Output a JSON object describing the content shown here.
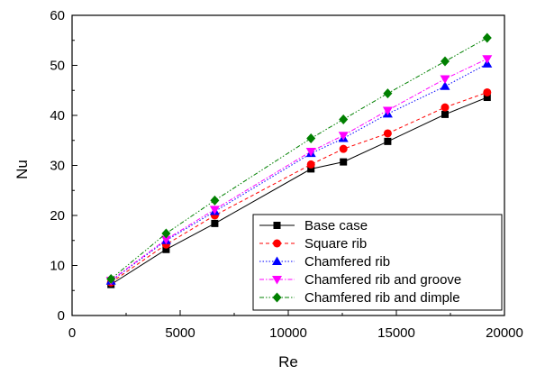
{
  "chart_data": {
    "type": "line",
    "title": "",
    "xlabel": "Re",
    "ylabel": "Nu",
    "xlim": [
      0,
      20000
    ],
    "ylim": [
      0,
      60
    ],
    "xticks": [
      0,
      5000,
      10000,
      15000,
      20000
    ],
    "yticks": [
      0,
      10,
      20,
      30,
      40,
      50,
      60
    ],
    "x_tick_labels": [
      "0",
      "5000",
      "10000",
      "15000",
      "20000"
    ],
    "y_tick_labels": [
      "0",
      "10",
      "20",
      "30",
      "40",
      "50",
      "60"
    ],
    "grid": false,
    "legend_position": "bottom-right",
    "x": [
      1800,
      4350,
      6600,
      11050,
      12550,
      14600,
      17250,
      19200
    ],
    "series": [
      {
        "name": "Base case",
        "values": [
          6.2,
          13.2,
          18.4,
          29.3,
          30.7,
          34.8,
          40.2,
          43.6
        ],
        "color": "#000000",
        "marker": "square",
        "line_style": "solid"
      },
      {
        "name": "Square rib",
        "values": [
          6.6,
          14.2,
          20.0,
          30.2,
          33.3,
          36.4,
          41.6,
          44.6
        ],
        "color": "#ff0000",
        "marker": "circle",
        "line_style": "dashed"
      },
      {
        "name": "Chamfered rib",
        "values": [
          6.9,
          15.0,
          20.8,
          32.4,
          35.4,
          40.3,
          45.8,
          50.3
        ],
        "color": "#0000ff",
        "marker": "triangle-up",
        "line_style": "dotted"
      },
      {
        "name": "Chamfered rib and groove",
        "values": [
          7.0,
          15.2,
          21.2,
          32.8,
          36.0,
          41.0,
          47.3,
          51.3
        ],
        "color": "#ff00ff",
        "marker": "triangle-down",
        "line_style": "dash-dot"
      },
      {
        "name": "Chamfered rib and dimple",
        "values": [
          7.3,
          16.4,
          23.0,
          35.4,
          39.2,
          44.4,
          50.8,
          55.5
        ],
        "color": "#008000",
        "marker": "diamond",
        "line_style": "dash-dot-dot"
      }
    ]
  }
}
